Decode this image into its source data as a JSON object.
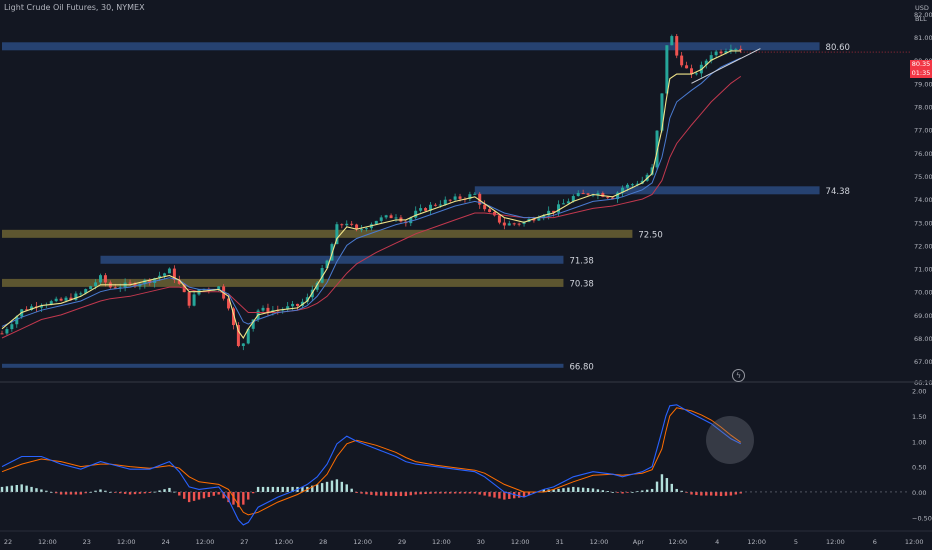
{
  "header": {
    "title": "Light Crude Oil Futures, 30, NYMEX",
    "currency": "USD",
    "unit": "BLL"
  },
  "current_price": {
    "value": "80.35",
    "countdown": "01:35"
  },
  "colors": {
    "background": "#131722",
    "zone_blue": "#2a4a7f",
    "zone_olive": "#6b6232",
    "ema_fast": "#f2e68a",
    "ema_mid": "#4a7bd1",
    "ema_slow": "#c2384e",
    "macd_line": "#2962ff",
    "signal_line": "#ff6d00",
    "hist_up": "#b2dfdb",
    "hist_down": "#ef5350",
    "price_tag": "#f23645"
  },
  "chart_data": [
    {
      "type": "line",
      "panel": "price",
      "y_ticks": [
        "82.00",
        "81.00",
        "80.00",
        "79.00",
        "78.00",
        "77.00",
        "76.00",
        "75.00",
        "74.00",
        "73.00",
        "72.00",
        "71.00",
        "70.00",
        "69.00",
        "68.00",
        "67.00",
        "66.10"
      ],
      "x_ticks": [
        "22",
        "12:00",
        "23",
        "12:00",
        "24",
        "12:00",
        "27",
        "12:00",
        "28",
        "12:00",
        "29",
        "12:00",
        "30",
        "12:00",
        "31",
        "12:00",
        "Apr",
        "12:00",
        "4",
        "12:00",
        "5",
        "12:00",
        "6",
        "12:00"
      ],
      "x_tick_index": [
        0,
        4,
        8,
        12,
        16,
        20,
        24,
        28,
        32,
        36,
        40,
        44,
        48,
        52,
        56,
        60,
        64,
        68,
        72,
        76,
        80,
        84,
        88,
        92
      ],
      "ylim": [
        66.1,
        82.6
      ],
      "xlim": [
        0,
        94
      ],
      "zones": [
        {
          "label": "80.60",
          "value": 80.6,
          "color": "blue",
          "x_start": 0,
          "x_end": 83
        },
        {
          "label": "74.38",
          "value": 74.38,
          "color": "blue",
          "x_start": 48,
          "x_end": 83
        },
        {
          "label": "72.50",
          "value": 72.5,
          "color": "olive",
          "x_start": 0,
          "x_end": 64
        },
        {
          "label": "71.38",
          "value": 71.38,
          "color": "blue",
          "x_start": 10,
          "x_end": 57
        },
        {
          "label": "70.38",
          "value": 70.38,
          "color": "olive",
          "x_start": 0,
          "x_end": 57
        },
        {
          "label": "66.80",
          "value": 66.8,
          "color": "blue",
          "x_start": 0,
          "x_end": 57
        }
      ],
      "close": [
        [
          0,
          68.2
        ],
        [
          2,
          69.2
        ],
        [
          4,
          69.5
        ],
        [
          6,
          69.6
        ],
        [
          8,
          69.9
        ],
        [
          10,
          70.6
        ],
        [
          11,
          70.2
        ],
        [
          13,
          70.3
        ],
        [
          15,
          70.5
        ],
        [
          17,
          70.9
        ],
        [
          18,
          70.3
        ],
        [
          19,
          69.5
        ],
        [
          20,
          70.1
        ],
        [
          22,
          70.2
        ],
        [
          23,
          69.4
        ],
        [
          24,
          67.6
        ],
        [
          24.5,
          67.8
        ],
        [
          25,
          68.5
        ],
        [
          26,
          69.2
        ],
        [
          28,
          69.2
        ],
        [
          30,
          69.4
        ],
        [
          31,
          69.7
        ],
        [
          32,
          70.5
        ],
        [
          33,
          71.3
        ],
        [
          34,
          72.8
        ],
        [
          35,
          73.0
        ],
        [
          36,
          72.6
        ],
        [
          38,
          73.1
        ],
        [
          40,
          73.3
        ],
        [
          41,
          73.0
        ],
        [
          42,
          73.4
        ],
        [
          44,
          73.8
        ],
        [
          46,
          74.0
        ],
        [
          48,
          74.2
        ],
        [
          49,
          73.5
        ],
        [
          51,
          72.9
        ],
        [
          53,
          73.0
        ],
        [
          55,
          73.4
        ],
        [
          56,
          73.5
        ],
        [
          58,
          74.1
        ],
        [
          60,
          74.3
        ],
        [
          62,
          74.1
        ],
        [
          63,
          74.5
        ],
        [
          65,
          74.8
        ],
        [
          66,
          75.3
        ],
        [
          67,
          78.5
        ],
        [
          67.4,
          80.5
        ],
        [
          67.8,
          81.3
        ],
        [
          68.5,
          80.2
        ],
        [
          70,
          79.3
        ],
        [
          71,
          79.7
        ],
        [
          72,
          80.3
        ],
        [
          73,
          80.4
        ],
        [
          74,
          80.6
        ],
        [
          75,
          80.5
        ]
      ],
      "ema_fast": [
        [
          0,
          68.4
        ],
        [
          2,
          69.1
        ],
        [
          4,
          69.4
        ],
        [
          6,
          69.5
        ],
        [
          8,
          69.8
        ],
        [
          10,
          70.3
        ],
        [
          11,
          70.3
        ],
        [
          13,
          70.3
        ],
        [
          15,
          70.5
        ],
        [
          17,
          70.7
        ],
        [
          18,
          70.5
        ],
        [
          19,
          70.0
        ],
        [
          20,
          70.0
        ],
        [
          22,
          70.1
        ],
        [
          23,
          69.8
        ],
        [
          24,
          68.3
        ],
        [
          24.5,
          68.0
        ],
        [
          25,
          68.4
        ],
        [
          26,
          69.0
        ],
        [
          28,
          69.2
        ],
        [
          30,
          69.3
        ],
        [
          31,
          69.6
        ],
        [
          32,
          70.3
        ],
        [
          33,
          71.0
        ],
        [
          34,
          72.3
        ],
        [
          35,
          72.8
        ],
        [
          36,
          72.7
        ],
        [
          38,
          72.9
        ],
        [
          40,
          73.1
        ],
        [
          41,
          73.1
        ],
        [
          42,
          73.3
        ],
        [
          44,
          73.6
        ],
        [
          46,
          73.9
        ],
        [
          48,
          74.1
        ],
        [
          49,
          73.8
        ],
        [
          51,
          73.2
        ],
        [
          53,
          73.0
        ],
        [
          55,
          73.3
        ],
        [
          56,
          73.4
        ],
        [
          58,
          73.9
        ],
        [
          60,
          74.2
        ],
        [
          62,
          74.1
        ],
        [
          63,
          74.3
        ],
        [
          65,
          74.7
        ],
        [
          66,
          75.1
        ],
        [
          67,
          77.0
        ],
        [
          67.4,
          78.2
        ],
        [
          67.8,
          79.2
        ],
        [
          68.5,
          79.4
        ],
        [
          70,
          79.4
        ],
        [
          71,
          79.6
        ],
        [
          72,
          80.0
        ],
        [
          73,
          80.2
        ],
        [
          74,
          80.4
        ],
        [
          75,
          80.4
        ]
      ],
      "ema_mid": [
        [
          0,
          68.5
        ],
        [
          2,
          68.9
        ],
        [
          4,
          69.2
        ],
        [
          6,
          69.4
        ],
        [
          8,
          69.6
        ],
        [
          10,
          70.0
        ],
        [
          11,
          70.1
        ],
        [
          13,
          70.2
        ],
        [
          15,
          70.4
        ],
        [
          17,
          70.6
        ],
        [
          18,
          70.5
        ],
        [
          19,
          70.2
        ],
        [
          20,
          70.1
        ],
        [
          22,
          70.1
        ],
        [
          23,
          69.9
        ],
        [
          24,
          69.1
        ],
        [
          24.5,
          68.7
        ],
        [
          25,
          68.6
        ],
        [
          26,
          68.8
        ],
        [
          28,
          69.1
        ],
        [
          30,
          69.2
        ],
        [
          31,
          69.4
        ],
        [
          32,
          69.8
        ],
        [
          33,
          70.4
        ],
        [
          34,
          71.3
        ],
        [
          35,
          72.0
        ],
        [
          36,
          72.3
        ],
        [
          38,
          72.6
        ],
        [
          40,
          72.9
        ],
        [
          41,
          73.0
        ],
        [
          42,
          73.1
        ],
        [
          44,
          73.4
        ],
        [
          46,
          73.7
        ],
        [
          48,
          73.9
        ],
        [
          49,
          73.8
        ],
        [
          51,
          73.4
        ],
        [
          53,
          73.2
        ],
        [
          55,
          73.2
        ],
        [
          56,
          73.3
        ],
        [
          58,
          73.6
        ],
        [
          60,
          73.9
        ],
        [
          62,
          74.0
        ],
        [
          63,
          74.1
        ],
        [
          65,
          74.4
        ],
        [
          66,
          74.7
        ],
        [
          67,
          75.8
        ],
        [
          67.4,
          76.6
        ],
        [
          67.8,
          77.5
        ],
        [
          68.5,
          78.2
        ],
        [
          70,
          78.7
        ],
        [
          71,
          79.0
        ],
        [
          72,
          79.4
        ],
        [
          73,
          79.7
        ],
        [
          74,
          79.9
        ],
        [
          75,
          80.1
        ]
      ],
      "ema_slow": [
        [
          0,
          68.0
        ],
        [
          2,
          68.4
        ],
        [
          4,
          68.8
        ],
        [
          6,
          69.0
        ],
        [
          8,
          69.3
        ],
        [
          10,
          69.6
        ],
        [
          11,
          69.7
        ],
        [
          13,
          69.8
        ],
        [
          15,
          70.0
        ],
        [
          17,
          70.2
        ],
        [
          18,
          70.2
        ],
        [
          19,
          70.1
        ],
        [
          20,
          70.0
        ],
        [
          22,
          70.0
        ],
        [
          23,
          69.9
        ],
        [
          24,
          69.5
        ],
        [
          24.5,
          69.3
        ],
        [
          25,
          69.1
        ],
        [
          26,
          69.1
        ],
        [
          28,
          69.1
        ],
        [
          30,
          69.2
        ],
        [
          31,
          69.3
        ],
        [
          32,
          69.5
        ],
        [
          33,
          69.8
        ],
        [
          34,
          70.3
        ],
        [
          35,
          70.8
        ],
        [
          36,
          71.2
        ],
        [
          38,
          71.7
        ],
        [
          40,
          72.1
        ],
        [
          41,
          72.3
        ],
        [
          42,
          72.5
        ],
        [
          44,
          72.8
        ],
        [
          46,
          73.1
        ],
        [
          48,
          73.4
        ],
        [
          49,
          73.4
        ],
        [
          51,
          73.3
        ],
        [
          53,
          73.2
        ],
        [
          55,
          73.2
        ],
        [
          56,
          73.2
        ],
        [
          58,
          73.4
        ],
        [
          60,
          73.6
        ],
        [
          62,
          73.7
        ],
        [
          63,
          73.8
        ],
        [
          65,
          74.0
        ],
        [
          66,
          74.2
        ],
        [
          67,
          74.8
        ],
        [
          67.4,
          75.3
        ],
        [
          67.8,
          75.8
        ],
        [
          68.5,
          76.4
        ],
        [
          70,
          77.2
        ],
        [
          71,
          77.7
        ],
        [
          72,
          78.2
        ],
        [
          73,
          78.6
        ],
        [
          74,
          79.0
        ],
        [
          75,
          79.3
        ]
      ],
      "trendline": [
        [
          70,
          79.0
        ],
        [
          77,
          80.5
        ]
      ]
    },
    {
      "type": "line",
      "panel": "macd",
      "y_ticks": [
        "2.00",
        "1.50",
        "1.00",
        "0.50",
        "0.00",
        "−0.50"
      ],
      "ylim": [
        -0.75,
        2.15
      ],
      "macd": [
        [
          0,
          0.5
        ],
        [
          2,
          0.7
        ],
        [
          4,
          0.7
        ],
        [
          6,
          0.55
        ],
        [
          8,
          0.45
        ],
        [
          10,
          0.6
        ],
        [
          11,
          0.55
        ],
        [
          13,
          0.45
        ],
        [
          15,
          0.45
        ],
        [
          17,
          0.6
        ],
        [
          18,
          0.4
        ],
        [
          19,
          0.1
        ],
        [
          20,
          0.05
        ],
        [
          22,
          0.1
        ],
        [
          23,
          -0.15
        ],
        [
          24,
          -0.55
        ],
        [
          24.5,
          -0.65
        ],
        [
          25,
          -0.6
        ],
        [
          26,
          -0.3
        ],
        [
          28,
          -0.1
        ],
        [
          30,
          0.05
        ],
        [
          31,
          0.15
        ],
        [
          32,
          0.3
        ],
        [
          33,
          0.55
        ],
        [
          34,
          0.95
        ],
        [
          35,
          1.1
        ],
        [
          36,
          1.0
        ],
        [
          38,
          0.85
        ],
        [
          40,
          0.7
        ],
        [
          41,
          0.6
        ],
        [
          42,
          0.55
        ],
        [
          44,
          0.5
        ],
        [
          46,
          0.45
        ],
        [
          48,
          0.4
        ],
        [
          49,
          0.3
        ],
        [
          51,
          0.0
        ],
        [
          53,
          -0.1
        ],
        [
          55,
          0.05
        ],
        [
          56,
          0.1
        ],
        [
          58,
          0.3
        ],
        [
          60,
          0.4
        ],
        [
          62,
          0.35
        ],
        [
          63,
          0.3
        ],
        [
          65,
          0.4
        ],
        [
          66,
          0.5
        ],
        [
          67,
          1.2
        ],
        [
          67.4,
          1.5
        ],
        [
          67.8,
          1.7
        ],
        [
          68.5,
          1.72
        ],
        [
          70,
          1.55
        ],
        [
          71,
          1.45
        ],
        [
          72,
          1.35
        ],
        [
          73,
          1.2
        ],
        [
          74,
          1.05
        ],
        [
          75,
          0.95
        ]
      ],
      "signal": [
        [
          0,
          0.4
        ],
        [
          2,
          0.55
        ],
        [
          4,
          0.65
        ],
        [
          6,
          0.6
        ],
        [
          8,
          0.5
        ],
        [
          10,
          0.55
        ],
        [
          11,
          0.55
        ],
        [
          13,
          0.5
        ],
        [
          15,
          0.47
        ],
        [
          17,
          0.52
        ],
        [
          18,
          0.47
        ],
        [
          19,
          0.3
        ],
        [
          20,
          0.2
        ],
        [
          22,
          0.15
        ],
        [
          23,
          0.05
        ],
        [
          24,
          -0.25
        ],
        [
          24.5,
          -0.4
        ],
        [
          25,
          -0.45
        ],
        [
          26,
          -0.4
        ],
        [
          28,
          -0.2
        ],
        [
          30,
          -0.05
        ],
        [
          31,
          0.05
        ],
        [
          32,
          0.15
        ],
        [
          33,
          0.35
        ],
        [
          34,
          0.7
        ],
        [
          35,
          0.95
        ],
        [
          36,
          1.02
        ],
        [
          38,
          0.92
        ],
        [
          40,
          0.78
        ],
        [
          41,
          0.68
        ],
        [
          42,
          0.6
        ],
        [
          44,
          0.53
        ],
        [
          46,
          0.48
        ],
        [
          48,
          0.43
        ],
        [
          49,
          0.37
        ],
        [
          51,
          0.15
        ],
        [
          53,
          0.0
        ],
        [
          55,
          0.0
        ],
        [
          56,
          0.05
        ],
        [
          58,
          0.2
        ],
        [
          60,
          0.33
        ],
        [
          62,
          0.35
        ],
        [
          63,
          0.33
        ],
        [
          65,
          0.37
        ],
        [
          66,
          0.44
        ],
        [
          67,
          0.85
        ],
        [
          67.4,
          1.2
        ],
        [
          67.8,
          1.5
        ],
        [
          68.5,
          1.66
        ],
        [
          70,
          1.6
        ],
        [
          71,
          1.52
        ],
        [
          72,
          1.42
        ],
        [
          73,
          1.28
        ],
        [
          74,
          1.12
        ],
        [
          75,
          0.98
        ]
      ]
    }
  ]
}
